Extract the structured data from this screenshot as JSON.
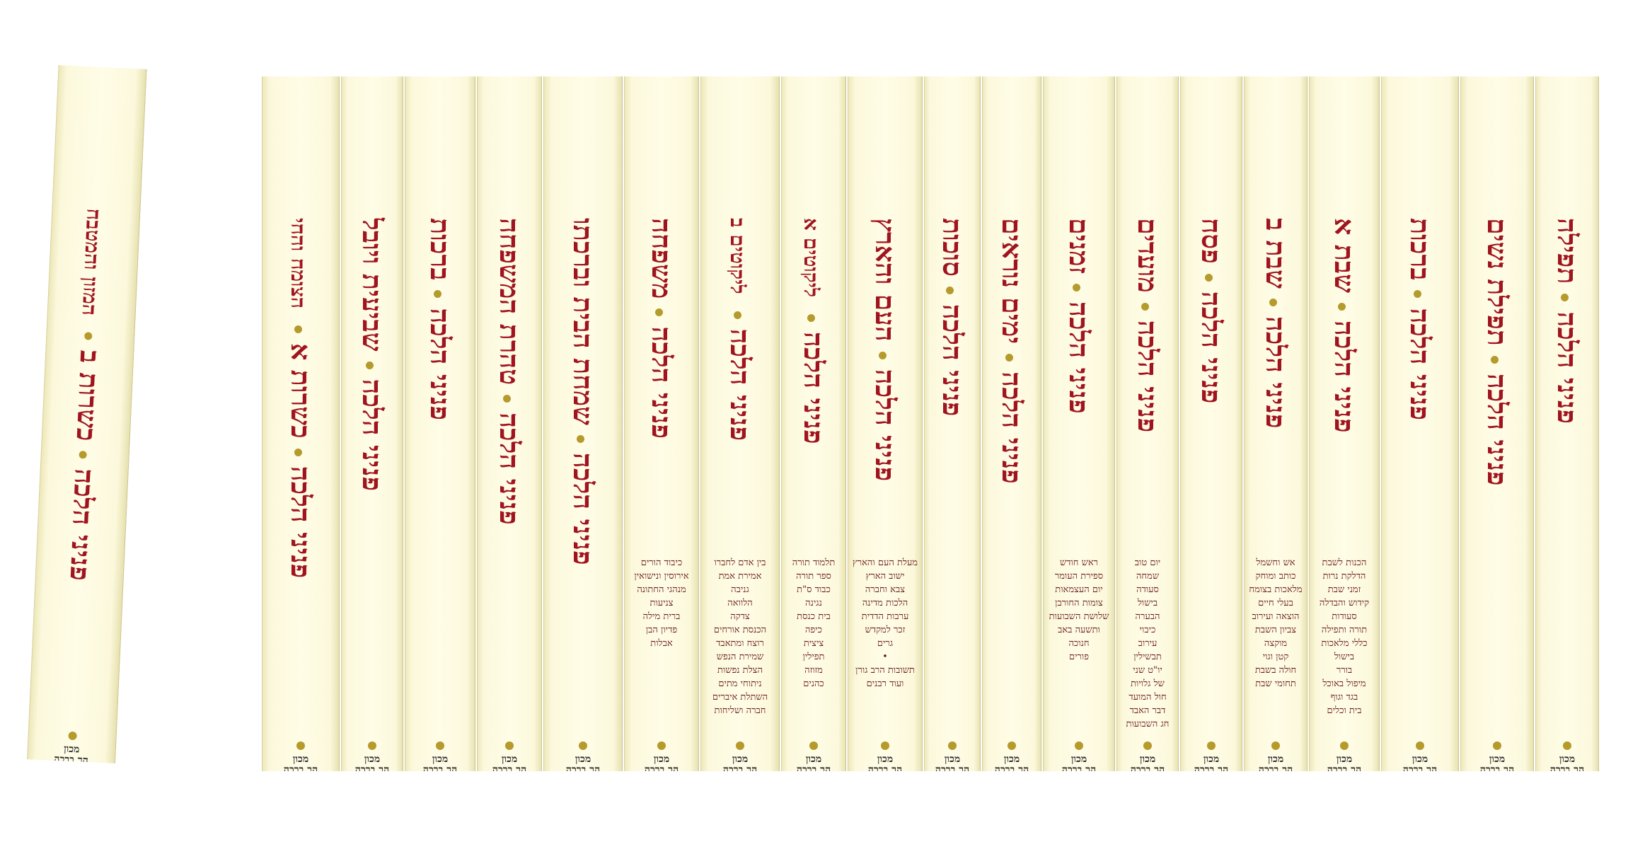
{
  "publisher_line1": "מכון",
  "publisher_line2": "הר ברכה",
  "series": "פניני הלכה",
  "leaning_book": {
    "title": "פניני הלכה",
    "subtitle": "כשרות ב",
    "extra": "המזון והמטבח"
  },
  "books": [
    {
      "title": "כשרות א",
      "extra": "הצומח והחי",
      "contents": ""
    },
    {
      "title": "שביעית ויובל",
      "extra": "",
      "contents": ""
    },
    {
      "title": "ברכות",
      "extra": "",
      "contents": ""
    },
    {
      "title": "טהרת המשפחה",
      "extra": "",
      "contents": ""
    },
    {
      "title": "שמחת הבית וברכתו",
      "extra": "",
      "contents": ""
    },
    {
      "title": "משפחה",
      "extra": "",
      "contents": "כיבוד הורים\nאירוסין ונישואין\nמנהגי החתונה\nצניעות\nברית מילה\nפדיון הבן\nאבלות"
    },
    {
      "title": "",
      "sub": "ליקוטים ב",
      "extra": "",
      "contents": "בין אדם לחברו\nאמירת אמת\nגניבה\nהלוואה\nצדקה\nהכנסת אורחים\nרוצח ומתאבד\nשמירת הנפש\nהצלת נפשות\nניתוחי מתים\nהשתלת איברים\nחברה ושליחות"
    },
    {
      "title": "",
      "sub": "ליקוטים א",
      "extra": "",
      "contents": "תלמוד תורה\nספר תורה\nכבוד ס\"ת\nנגינה\nבית כנסת\nכיפה\nציצית\nתפילין\nמזוזה\nכהנים"
    },
    {
      "title": "העם והארץ",
      "extra": "",
      "contents": "מעלת העם והארץ\nישוב הארץ\nצבא וחברה\nהלכות מדינה\nערבות הדדית\nזכר למקדש\nגרים\n• \nתשובות הרב גורן\nועוד רבנים"
    },
    {
      "title": "סוכות",
      "extra": "",
      "contents": ""
    },
    {
      "title": "ימים נוראים",
      "extra": "",
      "contents": ""
    },
    {
      "title": "זמנים",
      "extra": "",
      "contents": "ראש חודש\nספירת העומר\nיום העצמאות\nצומות החורבן\nשלושת השבועות\nותשעה באב\nחנוכה\nפורים"
    },
    {
      "title": "מועדים",
      "extra": "",
      "contents": "יום טוב\nשמחה\nסעודה\nבישול\nהבערה\nכיבוי\nעירוב\nתבשילין\nיו\"ט שני\nשל גלויות\nחול המועד\nדבר האבד\nחג השבועות"
    },
    {
      "title": "פסח",
      "extra": "",
      "contents": ""
    },
    {
      "title": "שבת ב",
      "extra": "",
      "contents": "אש וחשמל\nכותב ומוחק\nמלאכות בצומח\nבעלי חיים\nהוצאה ועירוב\nצביון השבת\nמוקצה\nקטן וגוי\nחולה בשבת\nתחומי שבת"
    },
    {
      "title": "שבת א",
      "extra": "",
      "contents": "הכנות לשבת\nהדלקת נרות\nזמני שבת\nקידוש והבדלה\nסעודות\nתורה ותפילה\nכללי מלאכות\nבישול\nבורר\nמיפול באוכל\nבגד וגוף\nבית וכלים"
    },
    {
      "title": "ברכות",
      "extra": "",
      "contents": ""
    },
    {
      "title": "תפילת נשים",
      "extra": "",
      "contents": ""
    },
    {
      "title": "תפילה",
      "extra": "",
      "contents": ""
    }
  ]
}
